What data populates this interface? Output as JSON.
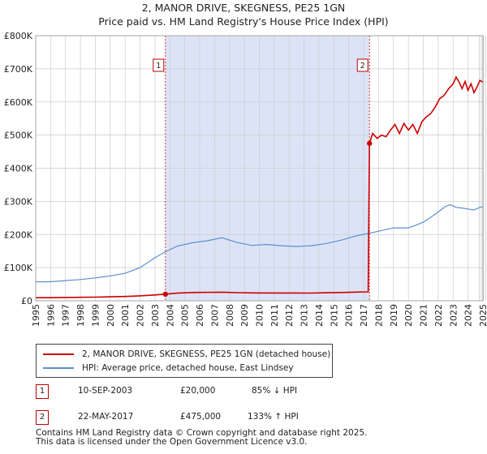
{
  "title_line1": "2, MANOR DRIVE, SKEGNESS, PE25 1GN",
  "title_line2": "Price paid vs. HM Land Registry's House Price Index (HPI)",
  "colors": {
    "property": "#cc0000",
    "hpi": "#5b8fd0",
    "shade": "#dde3f7",
    "grid": "#cccccc",
    "marker_border": "#bb0000"
  },
  "chart_data": {
    "type": "line",
    "title": "Price paid vs. HM Land Registry's House Price Index (HPI)",
    "xlim": [
      1995.0,
      2025.0
    ],
    "ylim": [
      0,
      800000
    ],
    "xticks": [
      1995,
      1996,
      1997,
      1998,
      1999,
      2000,
      2001,
      2002,
      2003,
      2004,
      2005,
      2006,
      2007,
      2008,
      2009,
      2010,
      2011,
      2012,
      2013,
      2014,
      2015,
      2016,
      2017,
      2018,
      2019,
      2020,
      2021,
      2022,
      2023,
      2024,
      2025
    ],
    "xtick_labels": [
      "1995",
      "1996",
      "1997",
      "1998",
      "1999",
      "2000",
      "2001",
      "2002",
      "2003",
      "2004",
      "2005",
      "2006",
      "2007",
      "2008",
      "2009",
      "2010",
      "2011",
      "2012",
      "2013",
      "2014",
      "2015",
      "2016",
      "2017",
      "2018",
      "2019",
      "2020",
      "2021",
      "2022",
      "2023",
      "2024",
      "2025"
    ],
    "yticks": [
      0,
      100000,
      200000,
      300000,
      400000,
      500000,
      600000,
      700000,
      800000
    ],
    "ytick_labels": [
      "£0",
      "£100K",
      "£200K",
      "£300K",
      "£400K",
      "£500K",
      "£600K",
      "£700K",
      "£800K"
    ],
    "shaded_range": [
      2003.7,
      2017.39
    ],
    "grid": true,
    "series": [
      {
        "name": "2, MANOR DRIVE, SKEGNESS, PE25 1GN (detached house)",
        "color": "#cc0000",
        "points": [
          [
            1995.0,
            9200
          ],
          [
            1996.0,
            9400
          ],
          [
            1997.0,
            10000
          ],
          [
            1998.0,
            10500
          ],
          [
            1999.0,
            11000
          ],
          [
            2000.0,
            12000
          ],
          [
            2001.0,
            13000
          ],
          [
            2002.0,
            15000
          ],
          [
            2003.0,
            17500
          ],
          [
            2003.7,
            20000
          ],
          [
            2004.5,
            23000
          ],
          [
            2005.5,
            25000
          ],
          [
            2007.5,
            26000
          ],
          [
            2008.5,
            24500
          ],
          [
            2009.5,
            23800
          ],
          [
            2011.0,
            23600
          ],
          [
            2012.5,
            23400
          ],
          [
            2013.5,
            23300
          ],
          [
            2014.5,
            24200
          ],
          [
            2015.5,
            25000
          ],
          [
            2016.5,
            26200
          ],
          [
            2017.3,
            27000
          ],
          [
            2017.39,
            475000
          ],
          [
            2017.6,
            505000
          ],
          [
            2017.9,
            490000
          ],
          [
            2018.2,
            500000
          ],
          [
            2018.5,
            495000
          ],
          [
            2018.8,
            515000
          ],
          [
            2019.1,
            532000
          ],
          [
            2019.4,
            505000
          ],
          [
            2019.7,
            535000
          ],
          [
            2020.0,
            515000
          ],
          [
            2020.3,
            532000
          ],
          [
            2020.6,
            505000
          ],
          [
            2020.9,
            540000
          ],
          [
            2021.2,
            555000
          ],
          [
            2021.5,
            565000
          ],
          [
            2021.8,
            585000
          ],
          [
            2022.1,
            610000
          ],
          [
            2022.4,
            620000
          ],
          [
            2022.7,
            640000
          ],
          [
            2023.0,
            655000
          ],
          [
            2023.2,
            675000
          ],
          [
            2023.4,
            660000
          ],
          [
            2023.6,
            640000
          ],
          [
            2023.8,
            662000
          ],
          [
            2024.0,
            635000
          ],
          [
            2024.2,
            655000
          ],
          [
            2024.4,
            628000
          ],
          [
            2024.6,
            645000
          ],
          [
            2024.8,
            665000
          ],
          [
            2025.0,
            660000
          ]
        ]
      },
      {
        "name": "HPI: Average price, detached house, East Lindsey",
        "color": "#5b8fd0",
        "points": [
          [
            1995.0,
            57000
          ],
          [
            1996.0,
            57500
          ],
          [
            1997.0,
            61000
          ],
          [
            1998.0,
            64000
          ],
          [
            1999.0,
            69000
          ],
          [
            2000.0,
            75000
          ],
          [
            2001.0,
            83000
          ],
          [
            2002.0,
            100000
          ],
          [
            2003.0,
            130000
          ],
          [
            2003.7,
            148000
          ],
          [
            2004.5,
            165000
          ],
          [
            2005.5,
            175000
          ],
          [
            2006.5,
            181000
          ],
          [
            2007.5,
            190000
          ],
          [
            2008.5,
            176000
          ],
          [
            2009.5,
            167000
          ],
          [
            2010.5,
            170000
          ],
          [
            2011.5,
            166000
          ],
          [
            2012.5,
            164000
          ],
          [
            2013.5,
            166000
          ],
          [
            2014.5,
            173000
          ],
          [
            2015.5,
            183000
          ],
          [
            2016.5,
            196000
          ],
          [
            2017.39,
            204000
          ],
          [
            2018.0,
            210000
          ],
          [
            2019.0,
            220000
          ],
          [
            2020.0,
            220000
          ],
          [
            2020.5,
            228000
          ],
          [
            2021.0,
            237000
          ],
          [
            2021.5,
            252000
          ],
          [
            2022.0,
            268000
          ],
          [
            2022.5,
            285000
          ],
          [
            2022.8,
            290000
          ],
          [
            2023.2,
            282000
          ],
          [
            2023.6,
            280000
          ],
          [
            2024.0,
            277000
          ],
          [
            2024.4,
            274000
          ],
          [
            2024.8,
            282000
          ],
          [
            2025.0,
            284000
          ]
        ]
      }
    ],
    "annotations": [
      {
        "label": "1",
        "x": 2003.7,
        "y": 20000
      },
      {
        "label": "2",
        "x": 2017.39,
        "y": 475000
      }
    ]
  },
  "legend": {
    "property_label": "2, MANOR DRIVE, SKEGNESS, PE25 1GN (detached house)",
    "hpi_label": "HPI: Average price, detached house, East Lindsey"
  },
  "transactions": [
    {
      "num": "1",
      "date": "10-SEP-2003",
      "price": "£20,000",
      "hpi_diff": "85% ↓ HPI"
    },
    {
      "num": "2",
      "date": "22-MAY-2017",
      "price": "£475,000",
      "hpi_diff": "133% ↑ HPI"
    }
  ],
  "footer": {
    "line1": "Contains HM Land Registry data © Crown copyright and database right 2025.",
    "line2": "This data is licensed under the Open Government Licence v3.0."
  }
}
